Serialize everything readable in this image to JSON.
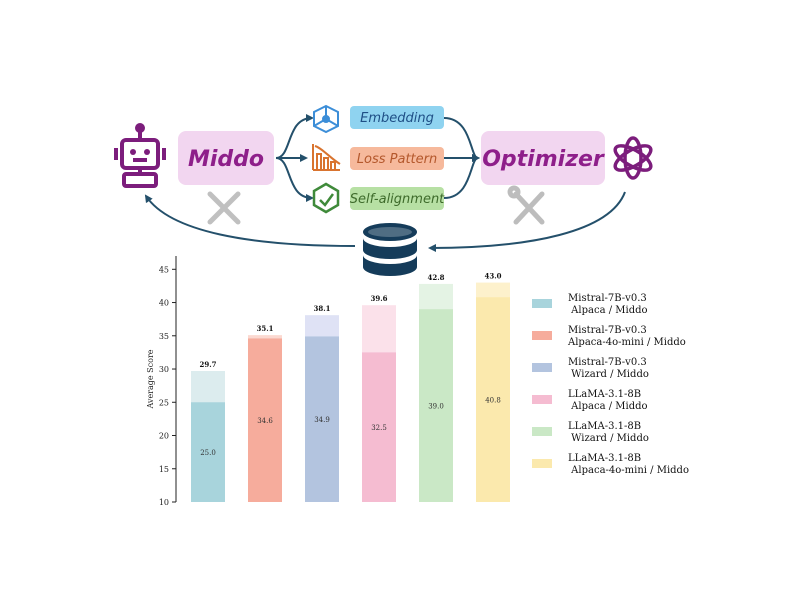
{
  "pipeline": {
    "left_box": "Middo",
    "right_box": "Optimizer",
    "steps": [
      {
        "label": "Embedding",
        "fill": "#8fd3f0",
        "text_color": "#1f4f86"
      },
      {
        "label": "Loss Pattern",
        "fill": "#f6b99c",
        "text_color": "#b4582c"
      },
      {
        "label": "Self-alignment",
        "fill": "#b7e0a4",
        "text_color": "#3e6b2b"
      }
    ],
    "colors": {
      "box_fill": "#f2d6f0",
      "box_text": "#8e1f8a",
      "robot": "#7c1d7c",
      "arrow": "#24506b",
      "database": "#153c5a",
      "tool_icon": "#b8b8b8"
    },
    "icons": [
      "robot-icon",
      "network-icon",
      "chart-icon",
      "recycle-icon",
      "pencil-ruler-icon",
      "openai-logo-icon",
      "tools-icon",
      "database-icon"
    ]
  },
  "chart_data": {
    "type": "bar",
    "ylabel": "Average Score",
    "ylim": [
      10,
      47
    ],
    "yticks": [
      10,
      15,
      20,
      25,
      30,
      35,
      40,
      45
    ],
    "grid": false,
    "legend_position": "right",
    "bars": [
      {
        "base_value": 25.0,
        "base_label": "25.0",
        "total": 29.7,
        "total_label": "29.7",
        "color": "#a8d4dc",
        "light": "#dcecee",
        "legend": [
          "Mistral-7B-v0.3",
          " Alpaca / Middo"
        ]
      },
      {
        "base_value": 34.6,
        "base_label": "34.6",
        "total": 35.1,
        "total_label": "35.1",
        "color": "#f6ac9c",
        "light": "#fbd9d1",
        "legend": [
          "Mistral-7B-v0.3",
          "Alpaca-4o-mini / Middo"
        ]
      },
      {
        "base_value": 34.9,
        "base_label": "34.9",
        "total": 38.1,
        "total_label": "38.1",
        "color": "#b3c4df",
        "light": "#dfe2f5",
        "legend": [
          "Mistral-7B-v0.3",
          " Wizard / Middo"
        ]
      },
      {
        "base_value": 32.5,
        "base_label": "32.5",
        "total": 39.6,
        "total_label": "39.6",
        "color": "#f5bcd1",
        "light": "#fbe1ea",
        "legend": [
          "LLaMA-3.1-8B",
          " Alpaca / Middo"
        ]
      },
      {
        "base_value": 39.0,
        "base_label": "39.0",
        "total": 42.8,
        "total_label": "42.8",
        "color": "#cae8c6",
        "light": "#e4f3e4",
        "legend": [
          "LLaMA-3.1-8B",
          " Wizard / Middo"
        ]
      },
      {
        "base_value": 40.8,
        "base_label": "40.8",
        "total": 43.0,
        "total_label": "43.0",
        "color": "#fbe9ad",
        "light": "#fdf1cc",
        "legend": [
          "LLaMA-3.1-8B",
          " Alpaca-4o-mini / Middo"
        ]
      }
    ]
  }
}
